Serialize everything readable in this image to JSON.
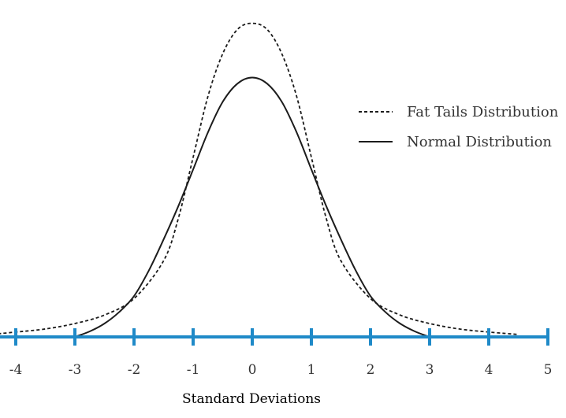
{
  "chart_data": {
    "type": "line",
    "title": "",
    "xlabel": "Standard Deviations",
    "ylabel": "",
    "xlim": [
      -4.3,
      5.0
    ],
    "ylim": [
      0,
      0.53
    ],
    "grid": false,
    "legend_position": "right",
    "x_ticks": [
      -4,
      -3,
      -2,
      -1,
      0,
      1,
      2,
      3,
      4,
      5
    ],
    "x_tick_labels": [
      "-4",
      "-3",
      "-2",
      "-1",
      "0",
      "1",
      "2",
      "3",
      "4",
      "5"
    ],
    "series": [
      {
        "name": "Fat Tails Distribution",
        "style": "dashed",
        "x": [
          -4.3,
          -4.0,
          -3.5,
          -3.0,
          -2.5,
          -2.0,
          -1.5,
          -1.25,
          -1.0,
          -0.75,
          -0.5,
          -0.25,
          0.0,
          0.25,
          0.5,
          0.75,
          1.0,
          1.25,
          1.5,
          2.0,
          2.5,
          3.0,
          3.5,
          4.0,
          4.5
        ],
        "values": [
          0.005,
          0.008,
          0.013,
          0.022,
          0.036,
          0.063,
          0.125,
          0.195,
          0.295,
          0.395,
          0.465,
          0.505,
          0.515,
          0.505,
          0.465,
          0.395,
          0.295,
          0.195,
          0.125,
          0.063,
          0.036,
          0.022,
          0.013,
          0.008,
          0.004
        ]
      },
      {
        "name": "Normal Distribution",
        "style": "solid",
        "x": [
          -3.0,
          -2.75,
          -2.5,
          -2.25,
          -2.0,
          -1.75,
          -1.5,
          -1.25,
          -1.0,
          -0.75,
          -0.5,
          -0.25,
          0.0,
          0.25,
          0.5,
          0.75,
          1.0,
          1.25,
          1.5,
          1.75,
          2.0,
          2.25,
          2.5,
          2.75,
          3.0
        ],
        "values": [
          0.0,
          0.009,
          0.022,
          0.041,
          0.067,
          0.109,
          0.16,
          0.215,
          0.275,
          0.336,
          0.386,
          0.416,
          0.426,
          0.416,
          0.386,
          0.336,
          0.275,
          0.215,
          0.16,
          0.109,
          0.067,
          0.041,
          0.022,
          0.009,
          0.0
        ]
      }
    ]
  },
  "colors": {
    "axis": "#1f8ac8",
    "curves": "#1c1c1c",
    "text": "#333333"
  }
}
